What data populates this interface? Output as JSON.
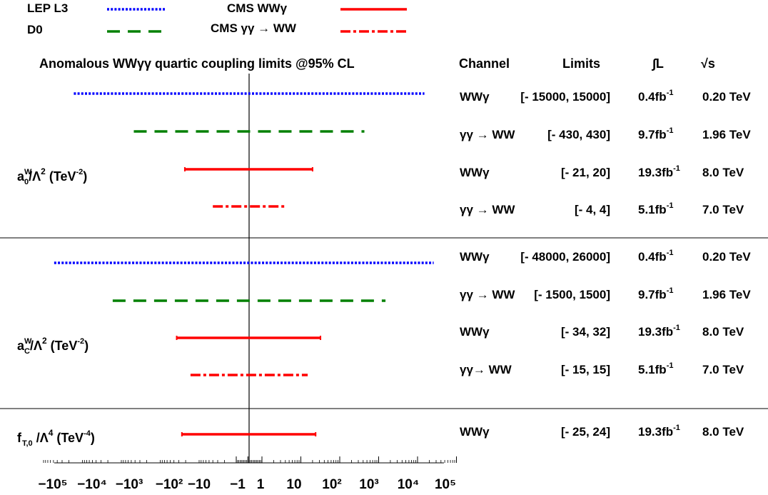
{
  "chart_data": {
    "type": "interval",
    "title": "Anomalous WWγγ quartic coupling limits @95% CL",
    "legend": [
      {
        "name": "LEP L3",
        "color": "#0000ff",
        "style": "dotted"
      },
      {
        "name": "D0",
        "color": "#008000",
        "style": "dashed"
      },
      {
        "name": "CMS WWγ",
        "color": "#ff0000",
        "style": "solid"
      },
      {
        "name": "CMS γγ → WW",
        "color": "#ff0000",
        "style": "dash-dot"
      }
    ],
    "x_scale": "symmetric-log",
    "x_ticks": [
      "−10⁵",
      "−10⁴",
      "−10³",
      "−10²",
      "−10",
      "−1",
      "1",
      "10",
      "10²",
      "10³",
      "10⁴",
      "10⁵"
    ],
    "table_headers": {
      "channel": "Channel",
      "limits": "Limits",
      "lumi": "∫L",
      "energy": "√s"
    },
    "groups": [
      {
        "name": "a₀ᵂ/Λ² (TeV⁻²)",
        "label": {
          "base": "a",
          "sub": "0",
          "sup": "W",
          "rest": "/Λ",
          "pow": "2",
          "unit": " (TeV",
          "unit_pow": "-2",
          "close": ")"
        },
        "rows": [
          {
            "experiment": "LEP L3",
            "channel": "WWγ",
            "limits": "[- 15000, 15000]",
            "low": -15000,
            "high": 15000,
            "lumi": "0.4fb",
            "energy": "0.20 TeV"
          },
          {
            "experiment": "D0",
            "channel": "γγ → WW",
            "limits": "[- 430, 430]",
            "low": -430,
            "high": 430,
            "lumi": "9.7fb",
            "energy": "1.96 TeV"
          },
          {
            "experiment": "CMS WWγ",
            "channel": "WWγ",
            "limits": "[- 21, 20]",
            "low": -21,
            "high": 20,
            "lumi": "19.3fb",
            "energy": "8.0  TeV"
          },
          {
            "experiment": "CMS γγ → WW",
            "channel": "γγ → WW",
            "limits": "[- 4, 4]",
            "low": -4,
            "high": 4,
            "lumi": "5.1fb",
            "energy": "7.0  TeV"
          }
        ]
      },
      {
        "name": "aᴄᵂ/Λ² (TeV⁻²)",
        "label": {
          "base": "a",
          "sub": "C",
          "sup": "W",
          "rest": "/Λ",
          "pow": "2",
          "unit": " (TeV",
          "unit_pow": "-2",
          "close": ")"
        },
        "rows": [
          {
            "experiment": "LEP L3",
            "channel": "WWγ",
            "limits": "[- 48000, 26000]",
            "low": -48000,
            "high": 26000,
            "lumi": "0.4fb",
            "energy": "0.20 TeV"
          },
          {
            "experiment": "D0",
            "channel": "γγ → WW",
            "limits": "[- 1500, 1500]",
            "low": -1500,
            "high": 1500,
            "lumi": "9.7fb",
            "energy": "1.96 TeV"
          },
          {
            "experiment": "CMS WWγ",
            "channel": "WWγ",
            "limits": "[- 34, 32]",
            "low": -34,
            "high": 32,
            "lumi": "19.3fb",
            "energy": "8.0  TeV"
          },
          {
            "experiment": "CMS γγ → WW",
            "channel": "γγ→ WW",
            "limits": "[- 15, 15]",
            "low": -15,
            "high": 15,
            "lumi": "5.1fb",
            "energy": "7.0  TeV"
          }
        ]
      },
      {
        "name": "fₜ,₀ /Λ⁴ (TeV⁻⁴)",
        "label": {
          "base": "f",
          "sub": "T,0",
          "sup": "",
          "rest": " /Λ",
          "pow": "4",
          "unit": " (TeV",
          "unit_pow": "-4",
          "close": ")"
        },
        "rows": [
          {
            "experiment": "CMS WWγ",
            "channel": "WWγ",
            "limits": "[- 25, 24]",
            "low": -25,
            "high": 24,
            "lumi": "19.3fb",
            "energy": "8.0  TeV"
          }
        ]
      }
    ],
    "lumi_unit_sup": "-1"
  }
}
